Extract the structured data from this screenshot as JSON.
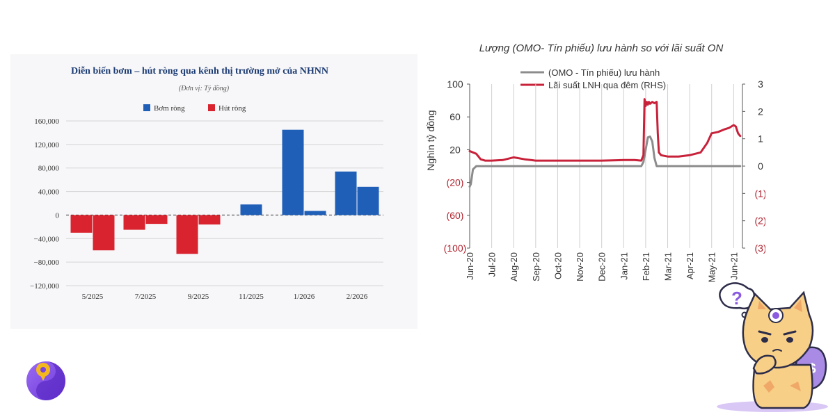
{
  "chart_data": [
    {
      "type": "bar",
      "title": "Diễn biến bơm – hút ròng qua kênh thị trường mở của NHNN",
      "subtitle": "(Đơn vị: Tỷ đồng)",
      "categories": [
        "5/2025",
        "7/2025",
        "9/2025",
        "11/2025",
        "1/2026",
        "2/2026"
      ],
      "series": [
        {
          "name": "Bơm ròng",
          "color": "#1f5fb8"
        },
        {
          "name": "Hút ròng",
          "color": "#d9232e"
        }
      ],
      "bars": [
        {
          "category": "5/2025",
          "values": [
            -30000,
            -60000
          ],
          "colors": [
            "#d9232e",
            "#d9232e"
          ]
        },
        {
          "category": "7/2025",
          "values": [
            -25000,
            -15000
          ],
          "colors": [
            "#d9232e",
            "#d9232e"
          ]
        },
        {
          "category": "9/2025",
          "values": [
            -66000,
            -16000
          ],
          "colors": [
            "#d9232e",
            "#d9232e"
          ]
        },
        {
          "category": "11/2025",
          "values": [
            18000
          ],
          "colors": [
            "#1f5fb8"
          ]
        },
        {
          "category": "1/2026",
          "values": [
            145000,
            7000
          ],
          "colors": [
            "#1f5fb8",
            "#1f5fb8"
          ]
        },
        {
          "category": "2/2026",
          "values": [
            74000,
            48000
          ],
          "colors": [
            "#1f5fb8",
            "#1f5fb8"
          ]
        }
      ],
      "y_ticks": [
        "160,000",
        "120,000",
        "80,000",
        "40,000",
        "0",
        "−40,000",
        "−80,000",
        "−120,000"
      ],
      "ylim": [
        -120000,
        160000
      ],
      "grid": true,
      "legend_position": "top-center"
    },
    {
      "type": "line",
      "title": "Lượng (OMO- Tín phiếu) lưu hành so với lãi suất ON",
      "ylabel": "Nghìn tỷ đồng",
      "x_ticks": [
        "Jun-20",
        "Jul-20",
        "Aug-20",
        "Sep-20",
        "Oct-20",
        "Nov-20",
        "Dec-20",
        "Jan-21",
        "Feb-21",
        "Mar-21",
        "Apr-21",
        "May-21",
        "Jun-21"
      ],
      "y_left_ticks": [
        "100",
        "60",
        "20",
        "(20)",
        "(60)",
        "(100)"
      ],
      "y_right_ticks": [
        "3",
        "2",
        "1",
        "0",
        "(1)",
        "(2)",
        "(3)"
      ],
      "ylim_left": [
        -100,
        100
      ],
      "ylim_right": [
        -3,
        3
      ],
      "grid": "vertical",
      "legend_position": "top",
      "series": [
        {
          "name": "(OMO - Tín phiếu) lưu hành",
          "axis": "left",
          "color": "#8c8c8c",
          "x": [
            0,
            0.05,
            0.15,
            0.3,
            0.5,
            1,
            2,
            3,
            4,
            5,
            6,
            7,
            7.8,
            7.9,
            8.0,
            8.1,
            8.2,
            8.3,
            8.4,
            8.5,
            8.6,
            9,
            10,
            11,
            12,
            12.3
          ],
          "y": [
            -25,
            -22,
            -4,
            0,
            0,
            0,
            0,
            0,
            0,
            0,
            0,
            0,
            0,
            5,
            20,
            35,
            36,
            30,
            10,
            0,
            0,
            0,
            0,
            0,
            0,
            0
          ]
        },
        {
          "name": "Lãi suất LNH qua đêm (RHS)",
          "axis": "right",
          "color": "#c8213a",
          "x": [
            0,
            0.15,
            0.3,
            0.5,
            0.7,
            1,
            1.5,
            2,
            2.5,
            3,
            4,
            5,
            6,
            7,
            7.5,
            7.8,
            7.9,
            7.95,
            8.0,
            8.05,
            8.1,
            8.15,
            8.2,
            8.3,
            8.4,
            8.5,
            8.55,
            8.6,
            8.7,
            9,
            9.5,
            10,
            10.5,
            10.8,
            11,
            11.3,
            11.6,
            11.8,
            12.0,
            12.1,
            12.2,
            12.3
          ],
          "y": [
            0.55,
            0.5,
            0.45,
            0.25,
            0.2,
            0.2,
            0.22,
            0.32,
            0.25,
            0.2,
            0.2,
            0.2,
            0.2,
            0.22,
            0.22,
            0.2,
            0.4,
            2.45,
            2.2,
            2.35,
            2.25,
            2.35,
            2.28,
            2.35,
            2.3,
            2.35,
            1.2,
            0.5,
            0.4,
            0.35,
            0.35,
            0.4,
            0.5,
            0.85,
            1.2,
            1.25,
            1.35,
            1.4,
            1.5,
            1.45,
            1.2,
            1.1
          ]
        }
      ]
    }
  ]
}
